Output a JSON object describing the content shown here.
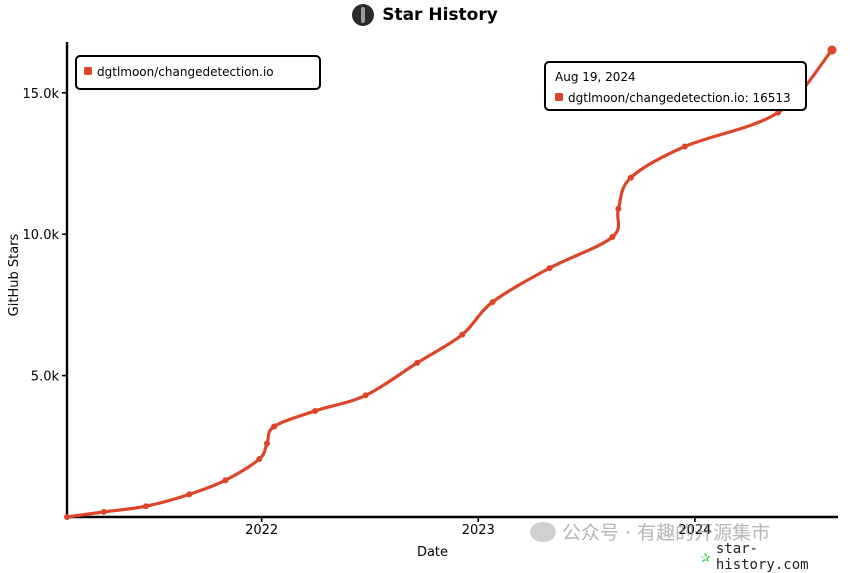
{
  "header": {
    "title": "Star History"
  },
  "watermark": {
    "text": "公众号 · 有趣的开源集市"
  },
  "footer": {
    "site": "star-history.com"
  },
  "colors": {
    "series": "#dd4528",
    "axis": "#000000"
  },
  "chart_data": {
    "type": "line",
    "title": "Star History",
    "xlabel": "Date",
    "ylabel": "GitHub Stars",
    "x_ticks": [
      "2022",
      "2023",
      "2024"
    ],
    "y_ticks": [
      "5.0k",
      "10.0k",
      "15.0k"
    ],
    "xlim": [
      "2021-02-07",
      "2024-08-19"
    ],
    "ylim": [
      0,
      16513
    ],
    "grid": false,
    "legend": {
      "position": "top-left",
      "entries": [
        "dgtlmoon/changedetection.io"
      ]
    },
    "tooltip": {
      "date": "Aug 19, 2024",
      "text": "dgtlmoon/changedetection.io: 16513"
    },
    "series": [
      {
        "name": "dgtlmoon/changedetection.io",
        "points": [
          {
            "x": "2021-02-07",
            "y": 0
          },
          {
            "x": "2021-04-10",
            "y": 180
          },
          {
            "x": "2021-06-20",
            "y": 380
          },
          {
            "x": "2021-09-01",
            "y": 800
          },
          {
            "x": "2021-11-01",
            "y": 1300
          },
          {
            "x": "2021-12-28",
            "y": 2050
          },
          {
            "x": "2022-01-10",
            "y": 2600
          },
          {
            "x": "2022-01-22",
            "y": 3200
          },
          {
            "x": "2022-04-01",
            "y": 3750
          },
          {
            "x": "2022-06-25",
            "y": 4300
          },
          {
            "x": "2022-09-20",
            "y": 5450
          },
          {
            "x": "2022-12-05",
            "y": 6450
          },
          {
            "x": "2023-01-25",
            "y": 7600
          },
          {
            "x": "2023-05-01",
            "y": 8800
          },
          {
            "x": "2023-08-15",
            "y": 9900
          },
          {
            "x": "2023-08-25",
            "y": 10900
          },
          {
            "x": "2023-09-15",
            "y": 12000
          },
          {
            "x": "2023-12-15",
            "y": 13100
          },
          {
            "x": "2024-05-20",
            "y": 14300
          },
          {
            "x": "2024-08-19",
            "y": 16513
          }
        ]
      }
    ]
  }
}
